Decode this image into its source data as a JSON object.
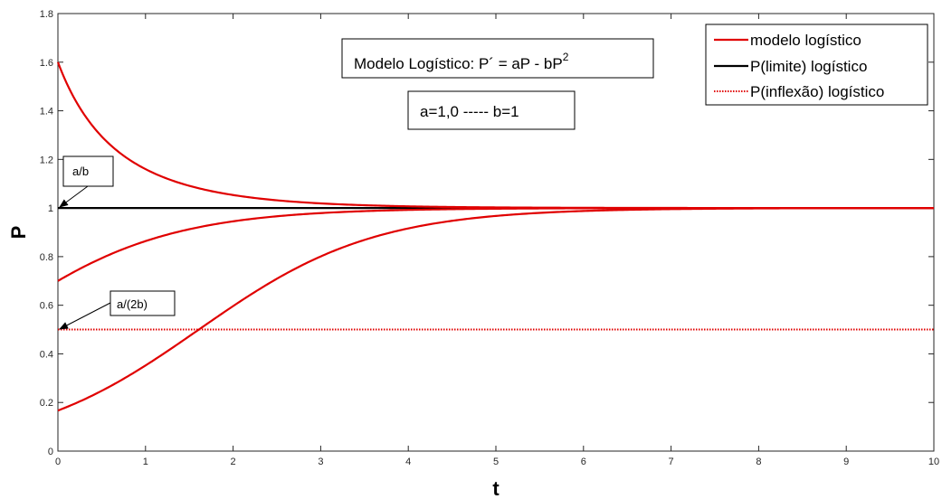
{
  "chart_data": {
    "type": "line",
    "xlabel": "t",
    "ylabel": "P",
    "xlim": [
      0,
      10
    ],
    "ylim": [
      0,
      1.8
    ],
    "xticks": [
      "0",
      "1",
      "2",
      "3",
      "4",
      "5",
      "6",
      "7",
      "8",
      "9",
      "10"
    ],
    "yticks": [
      "0",
      "0.2",
      "0.4",
      "0.6",
      "0.8",
      "1",
      "1.2",
      "1.4",
      "1.6",
      "1.8"
    ],
    "model": {
      "a": 1.0,
      "b": 1
    },
    "initial_conditions": [
      1.6,
      0.7,
      0.1667
    ],
    "series": [
      {
        "name": "modelo logístico",
        "color": "#e00000",
        "style": "solid",
        "x": [
          0,
          0.5,
          1,
          1.5,
          2,
          2.5,
          3,
          3.5,
          4,
          4.5,
          5,
          6,
          7,
          8,
          9,
          10
        ],
        "y": [
          1.6,
          1.32,
          1.18,
          1.1,
          1.05,
          1.03,
          1.019,
          1.011,
          1.007,
          1.004,
          1.002,
          1.001,
          1.0,
          1.0,
          1.0,
          1.0
        ]
      },
      {
        "name": "",
        "color": "#e00000",
        "style": "solid",
        "x": [
          0,
          0.5,
          1,
          1.5,
          2,
          2.5,
          3,
          3.5,
          4,
          4.5,
          5,
          6,
          7,
          8,
          9,
          10
        ],
        "y": [
          0.7,
          0.79,
          0.86,
          0.91,
          0.945,
          0.967,
          0.98,
          0.988,
          0.993,
          0.996,
          0.997,
          0.999,
          1.0,
          1.0,
          1.0,
          1.0
        ]
      },
      {
        "name": "",
        "color": "#e00000",
        "style": "solid",
        "x": [
          0,
          0.5,
          1,
          1.5,
          2,
          2.5,
          3,
          3.5,
          4,
          4.5,
          5,
          6,
          7,
          8,
          9,
          10
        ],
        "y": [
          0.167,
          0.248,
          0.352,
          0.473,
          0.597,
          0.711,
          0.802,
          0.87,
          0.916,
          0.947,
          0.967,
          0.988,
          0.995,
          0.998,
          0.999,
          1.0
        ]
      },
      {
        "name": "P(limite) logístico",
        "color": "#000000",
        "style": "solid",
        "x": [
          0,
          10
        ],
        "y": [
          1,
          1
        ]
      },
      {
        "name": "P(inflexão) logístico",
        "color": "#e00000",
        "style": "dotted",
        "x": [
          0,
          10
        ],
        "y": [
          0.5,
          0.5
        ]
      }
    ],
    "legend": {
      "position": "top-right",
      "entries": [
        "modelo logístico",
        "P(limite) logístico",
        "P(inflexão) logístico"
      ]
    },
    "title_box": {
      "prefix": "Modelo Logístico:   P´ = aP - bP",
      "superscript": "2"
    },
    "params_box": "a=1,0 -----  b=1",
    "annotations": [
      {
        "text": "a/b",
        "x": 0,
        "y": 1
      },
      {
        "text": "a/(2b)",
        "x": 0,
        "y": 0.5
      }
    ]
  }
}
